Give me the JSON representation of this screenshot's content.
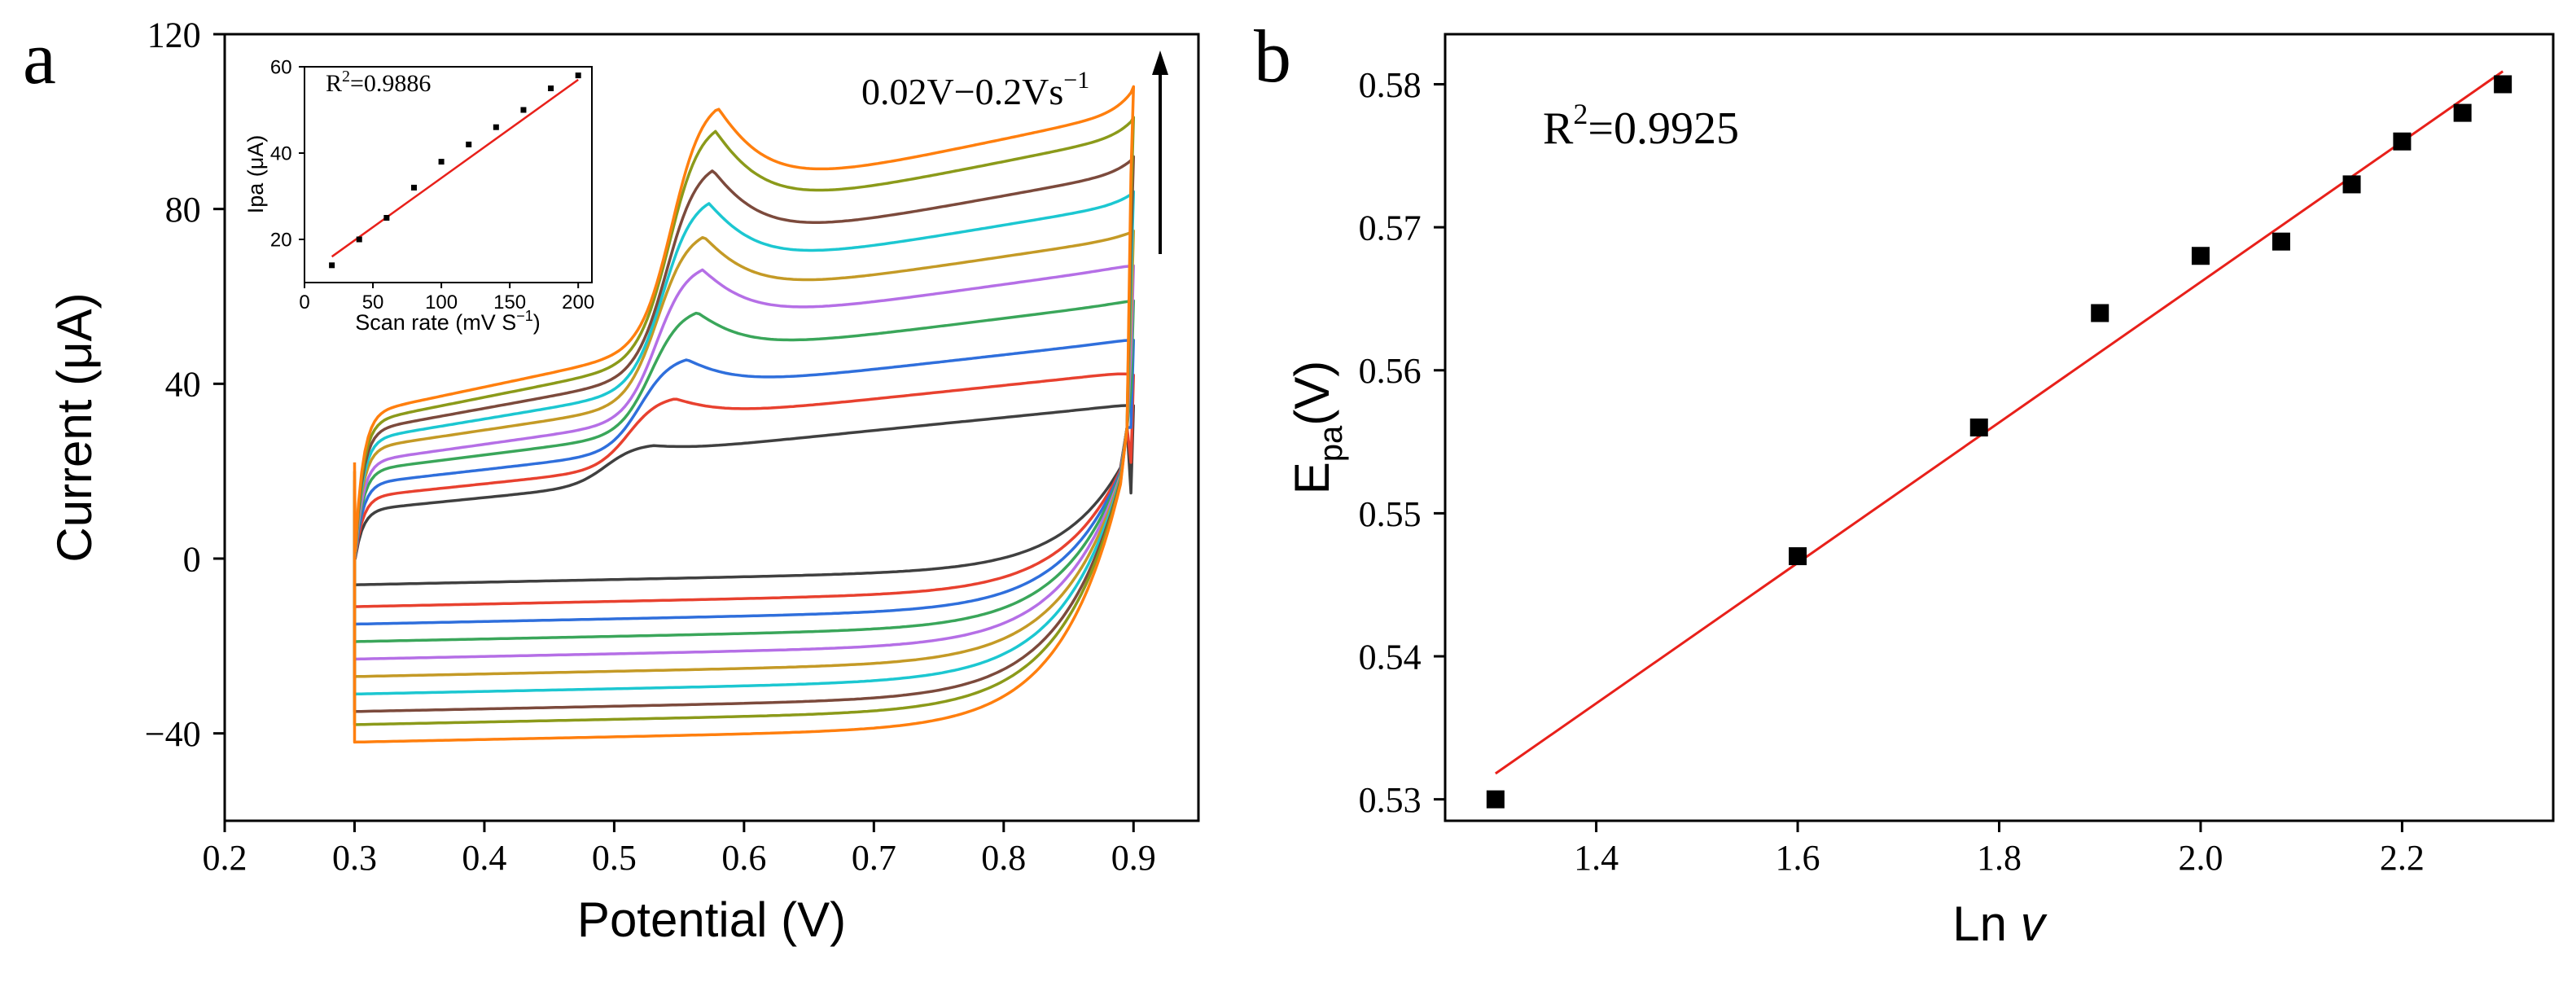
{
  "panels": {
    "a": {
      "label": "a"
    },
    "b": {
      "label": "b"
    }
  },
  "colors": {
    "cv_series": [
      "#404040",
      "#e8412f",
      "#2f6fdc",
      "#3aa65a",
      "#b56fe6",
      "#c49a26",
      "#1cc7d1",
      "#7c4a3c",
      "#8b9a1a",
      "#ff7f0e"
    ],
    "fit_line": "#e8201a",
    "marker": "#000000"
  },
  "chart_data": [
    {
      "id": "cv",
      "type": "line",
      "xlabel": "Potential (V)",
      "ylabel": "Current (μA)",
      "xlim": [
        0.2,
        0.95
      ],
      "ylim": [
        -60,
        120
      ],
      "xticks": [
        "0.2",
        "0.3",
        "0.4",
        "0.5",
        "0.6",
        "0.7",
        "0.8",
        "0.9"
      ],
      "yticks": [
        "−40",
        "0",
        "40",
        "80",
        "120"
      ],
      "annotation": "0.02V−0.2Vs",
      "annotation_sup": "−1",
      "series": [
        {
          "scan_rate_Vs": 0.02,
          "peak_potential_V": 0.53,
          "peak_current_uA": 18.5,
          "start_current_uA": 3,
          "end_current_uA": 35,
          "cathodic_baseline_uA": -6
        },
        {
          "scan_rate_Vs": 0.04,
          "peak_potential_V": 0.547,
          "peak_current_uA": 30.0,
          "start_current_uA": 6,
          "end_current_uA": 42,
          "cathodic_baseline_uA": -11
        },
        {
          "scan_rate_Vs": 0.06,
          "peak_potential_V": 0.556,
          "peak_current_uA": 39.5,
          "start_current_uA": 9,
          "end_current_uA": 50,
          "cathodic_baseline_uA": -15
        },
        {
          "scan_rate_Vs": 0.08,
          "peak_potential_V": 0.564,
          "peak_current_uA": 51.0,
          "start_current_uA": 12,
          "end_current_uA": 59,
          "cathodic_baseline_uA": -19
        },
        {
          "scan_rate_Vs": 0.1,
          "peak_potential_V": 0.568,
          "peak_current_uA": 61.5,
          "start_current_uA": 14,
          "end_current_uA": 67,
          "cathodic_baseline_uA": -23
        },
        {
          "scan_rate_Vs": 0.12,
          "peak_potential_V": 0.569,
          "peak_current_uA": 69.5,
          "start_current_uA": 17,
          "end_current_uA": 75,
          "cathodic_baseline_uA": -27
        },
        {
          "scan_rate_Vs": 0.14,
          "peak_potential_V": 0.573,
          "peak_current_uA": 77.5,
          "start_current_uA": 19,
          "end_current_uA": 84,
          "cathodic_baseline_uA": -31
        },
        {
          "scan_rate_Vs": 0.16,
          "peak_potential_V": 0.576,
          "peak_current_uA": 85.5,
          "start_current_uA": 21,
          "end_current_uA": 92,
          "cathodic_baseline_uA": -35
        },
        {
          "scan_rate_Vs": 0.18,
          "peak_potential_V": 0.578,
          "peak_current_uA": 95.0,
          "start_current_uA": 23,
          "end_current_uA": 101,
          "cathodic_baseline_uA": -38
        },
        {
          "scan_rate_Vs": 0.2,
          "peak_potential_V": 0.58,
          "peak_current_uA": 100.5,
          "start_current_uA": 25,
          "end_current_uA": 108,
          "cathodic_baseline_uA": -42
        }
      ]
    },
    {
      "id": "inset",
      "type": "scatter",
      "xlabel": "Scan rate (mV S",
      "xlabel_sup": "−1",
      "xlabel_close": ")",
      "ylabel": "Ipa (μA)",
      "xlim": [
        0,
        210
      ],
      "ylim": [
        10,
        60
      ],
      "xticks": [
        "0",
        "50",
        "100",
        "150",
        "200"
      ],
      "yticks": [
        "20",
        "40",
        "60"
      ],
      "r2_label": "R",
      "r2_sup": "2",
      "r2_value": "=0.9886",
      "points": [
        {
          "x": 20,
          "y": 14
        },
        {
          "x": 40,
          "y": 20
        },
        {
          "x": 60,
          "y": 25
        },
        {
          "x": 80,
          "y": 32
        },
        {
          "x": 100,
          "y": 38
        },
        {
          "x": 120,
          "y": 42
        },
        {
          "x": 140,
          "y": 46
        },
        {
          "x": 160,
          "y": 50
        },
        {
          "x": 180,
          "y": 55
        },
        {
          "x": 200,
          "y": 58
        }
      ],
      "fit": {
        "x": [
          20,
          200
        ],
        "y": [
          16,
          57
        ]
      }
    },
    {
      "id": "tafel",
      "type": "scatter",
      "xlabel": "Ln",
      "xlabel_italic": "v",
      "ylabel": "E",
      "ylabel_sub": "pa",
      "ylabel_close": "(V)",
      "xlim": [
        1.25,
        2.35
      ],
      "ylim": [
        0.5285,
        0.5835
      ],
      "xticks": [
        "1.4",
        "1.6",
        "1.8",
        "2.0",
        "2.2"
      ],
      "yticks": [
        "0.53",
        "0.54",
        "0.55",
        "0.56",
        "0.57",
        "0.58"
      ],
      "r2_label": "R",
      "r2_sup": "2",
      "r2_value": "=0.9925",
      "points": [
        {
          "x": 1.3,
          "y": 0.53
        },
        {
          "x": 1.6,
          "y": 0.547
        },
        {
          "x": 1.78,
          "y": 0.556
        },
        {
          "x": 1.9,
          "y": 0.564
        },
        {
          "x": 2.0,
          "y": 0.568
        },
        {
          "x": 2.08,
          "y": 0.569
        },
        {
          "x": 2.15,
          "y": 0.573
        },
        {
          "x": 2.2,
          "y": 0.576
        },
        {
          "x": 2.26,
          "y": 0.578
        },
        {
          "x": 2.3,
          "y": 0.58
        }
      ],
      "fit": {
        "x": [
          1.3,
          2.3
        ],
        "y": [
          0.5318,
          0.5809
        ]
      }
    }
  ]
}
